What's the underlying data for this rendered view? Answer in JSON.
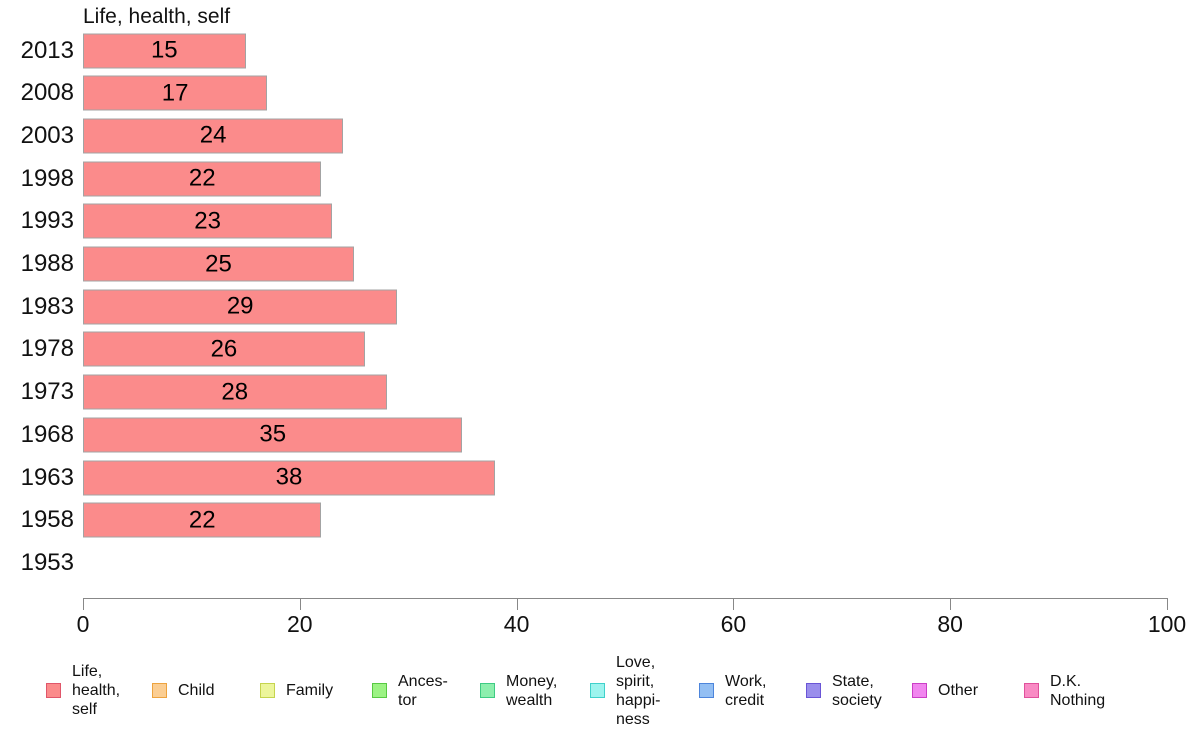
{
  "chart_data": {
    "type": "bar",
    "orientation": "horizontal",
    "title": "Life, health, self",
    "categories": [
      "2013",
      "2008",
      "2003",
      "1998",
      "1993",
      "1988",
      "1983",
      "1978",
      "1973",
      "1968",
      "1963",
      "1958",
      "1953"
    ],
    "values": [
      15,
      17,
      24,
      22,
      23,
      25,
      29,
      26,
      28,
      35,
      38,
      22,
      null
    ],
    "xlim": [
      0,
      100
    ],
    "x_ticks": [
      0,
      20,
      40,
      60,
      80,
      100
    ],
    "grid": "off",
    "bar_color": "#fb8b8b",
    "bar_border_color": "#a3a3a3",
    "value_labels": "inside-center",
    "legend_position": "bottom",
    "legend": [
      {
        "label": "Life,\nhealth,\nself",
        "color": "#fb8b8b",
        "border": "#e0566a"
      },
      {
        "label": "Child",
        "color": "#fbce93",
        "border": "#eda33f"
      },
      {
        "label": "Family",
        "color": "#ecf59b",
        "border": "#c5d44e"
      },
      {
        "label": "Ances-\ntor",
        "color": "#9cf384",
        "border": "#58c943"
      },
      {
        "label": "Money,\nwealth",
        "color": "#8defae",
        "border": "#3ecb84"
      },
      {
        "label": "Love,\nspirit,\nhappi-\nness",
        "color": "#9df4ee",
        "border": "#3fd1cb"
      },
      {
        "label": "Work,\ncredit",
        "color": "#93bff3",
        "border": "#4d85db"
      },
      {
        "label": "State,\nsociety",
        "color": "#9a8eec",
        "border": "#6a55d6"
      },
      {
        "label": "Other",
        "color": "#f186ef",
        "border": "#cb3fc6"
      },
      {
        "label": "D.K.\nNothing",
        "color": "#f98bc4",
        "border": "#e0519c"
      }
    ]
  }
}
